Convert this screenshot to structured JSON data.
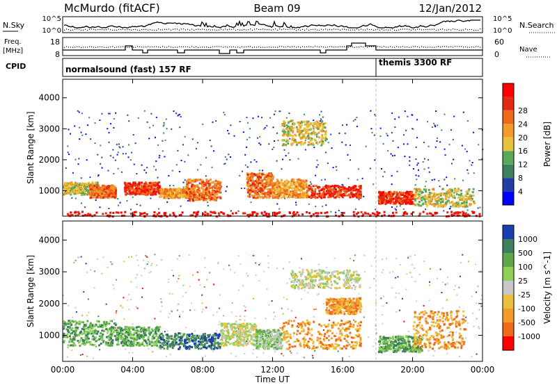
{
  "header": {
    "station": "McMurdo (fitACF)",
    "beam": "Beam 09",
    "date": "12/Jan/2012"
  },
  "noise_panel": {
    "left_label": "N.Sky",
    "right_label": "N.Search",
    "left_ticks": [
      "10^5",
      "10^0"
    ],
    "right_ticks": [
      "10^5",
      "10^0"
    ]
  },
  "freq_panel": {
    "left_label_1": "Freq.",
    "left_label_2": "[MHz]",
    "left_ticks": [
      "18",
      "8"
    ],
    "right_label": "Nave",
    "right_ticks": [
      "60",
      "0"
    ]
  },
  "cpid": {
    "label": "CPID",
    "modes": [
      "normalsound (fast) 157 RF",
      "themis 3300 RF"
    ]
  },
  "chart_data": [
    {
      "type": "heatmap",
      "title": "",
      "xlabel": "",
      "ylabel": "Slant Range [km]",
      "x_ticks": [
        "00:00",
        "04:00",
        "08:00",
        "12:00",
        "16:00",
        "20:00",
        "00:00"
      ],
      "y_ticks": [
        1000,
        2000,
        3000,
        4000
      ],
      "xlim": [
        0,
        24
      ],
      "ylim": [
        180,
        4600
      ],
      "colorbar": {
        "label": "Power [dB]",
        "ticks": [
          "4",
          "8",
          "12",
          "16",
          "20",
          "24",
          "28"
        ],
        "colors": [
          "#0000ff",
          "#1f3fa6",
          "#3d7f5f",
          "#5aa85a",
          "#e8c23a",
          "#f59b2a",
          "#ee6a1a",
          "#e32a12",
          "#ff0000"
        ]
      },
      "features": [
        {
          "x": [
            0,
            24
          ],
          "y": [
            200,
            350
          ],
          "level": 8
        },
        {
          "x": [
            0,
            2
          ],
          "y": [
            900,
            1300
          ],
          "level": 4
        },
        {
          "x": [
            1.5,
            3
          ],
          "y": [
            800,
            1200
          ],
          "level": 6
        },
        {
          "x": [
            3.5,
            5.5
          ],
          "y": [
            900,
            1300
          ],
          "level": 7
        },
        {
          "x": [
            5.5,
            7.5
          ],
          "y": [
            800,
            1100
          ],
          "level": 5
        },
        {
          "x": [
            7,
            9
          ],
          "y": [
            700,
            1400
          ],
          "level": 6
        },
        {
          "x": [
            10.5,
            12
          ],
          "y": [
            800,
            1600
          ],
          "level": 6
        },
        {
          "x": [
            12,
            14
          ],
          "y": [
            800,
            1400
          ],
          "level": 5
        },
        {
          "x": [
            14,
            17
          ],
          "y": [
            800,
            1200
          ],
          "level": 7
        },
        {
          "x": [
            12.5,
            15
          ],
          "y": [
            2500,
            3300
          ],
          "level": 4
        },
        {
          "x": [
            18,
            20
          ],
          "y": [
            600,
            1000
          ],
          "level": 7
        },
        {
          "x": [
            20,
            23.5
          ],
          "y": [
            500,
            1100
          ],
          "level": 4
        }
      ]
    },
    {
      "type": "heatmap",
      "title": "",
      "xlabel": "Time UT",
      "ylabel": "Slant Range [km]",
      "x_ticks": [
        "00:00",
        "04:00",
        "08:00",
        "12:00",
        "16:00",
        "20:00",
        "00:00"
      ],
      "y_ticks": [
        1000,
        2000,
        3000,
        4000
      ],
      "xlim": [
        0,
        24
      ],
      "ylim": [
        180,
        4600
      ],
      "colorbar": {
        "label": "Velocity [m s^-1]",
        "ticks": [
          "1000",
          "500",
          "100",
          "25",
          "-25",
          "-100",
          "-500",
          "-1000"
        ],
        "colors": [
          "#1c3fb0",
          "#3d7f5f",
          "#5fa84a",
          "#8cd05a",
          "#c8c8c8",
          "#e8c23a",
          "#f59b2a",
          "#ee6a1a",
          "#ff0000"
        ]
      },
      "features": [
        {
          "x": [
            0,
            3
          ],
          "y": [
            700,
            1500
          ],
          "level": 2
        },
        {
          "x": [
            3,
            5.5
          ],
          "y": [
            700,
            1300
          ],
          "level": 2
        },
        {
          "x": [
            5.5,
            9
          ],
          "y": [
            600,
            1100
          ],
          "level": 1
        },
        {
          "x": [
            9,
            11
          ],
          "y": [
            700,
            1400
          ],
          "level": 4
        },
        {
          "x": [
            11,
            12.5
          ],
          "y": [
            600,
            1200
          ],
          "level": 3
        },
        {
          "x": [
            12.5,
            17
          ],
          "y": [
            600,
            1500
          ],
          "level": 6
        },
        {
          "x": [
            13,
            17
          ],
          "y": [
            2500,
            3100
          ],
          "level": 4
        },
        {
          "x": [
            15,
            17
          ],
          "y": [
            1700,
            2200
          ],
          "level": 6
        },
        {
          "x": [
            18,
            20.5
          ],
          "y": [
            500,
            1000
          ],
          "level": 2
        },
        {
          "x": [
            20,
            23
          ],
          "y": [
            600,
            1800
          ],
          "level": 6
        }
      ]
    }
  ]
}
